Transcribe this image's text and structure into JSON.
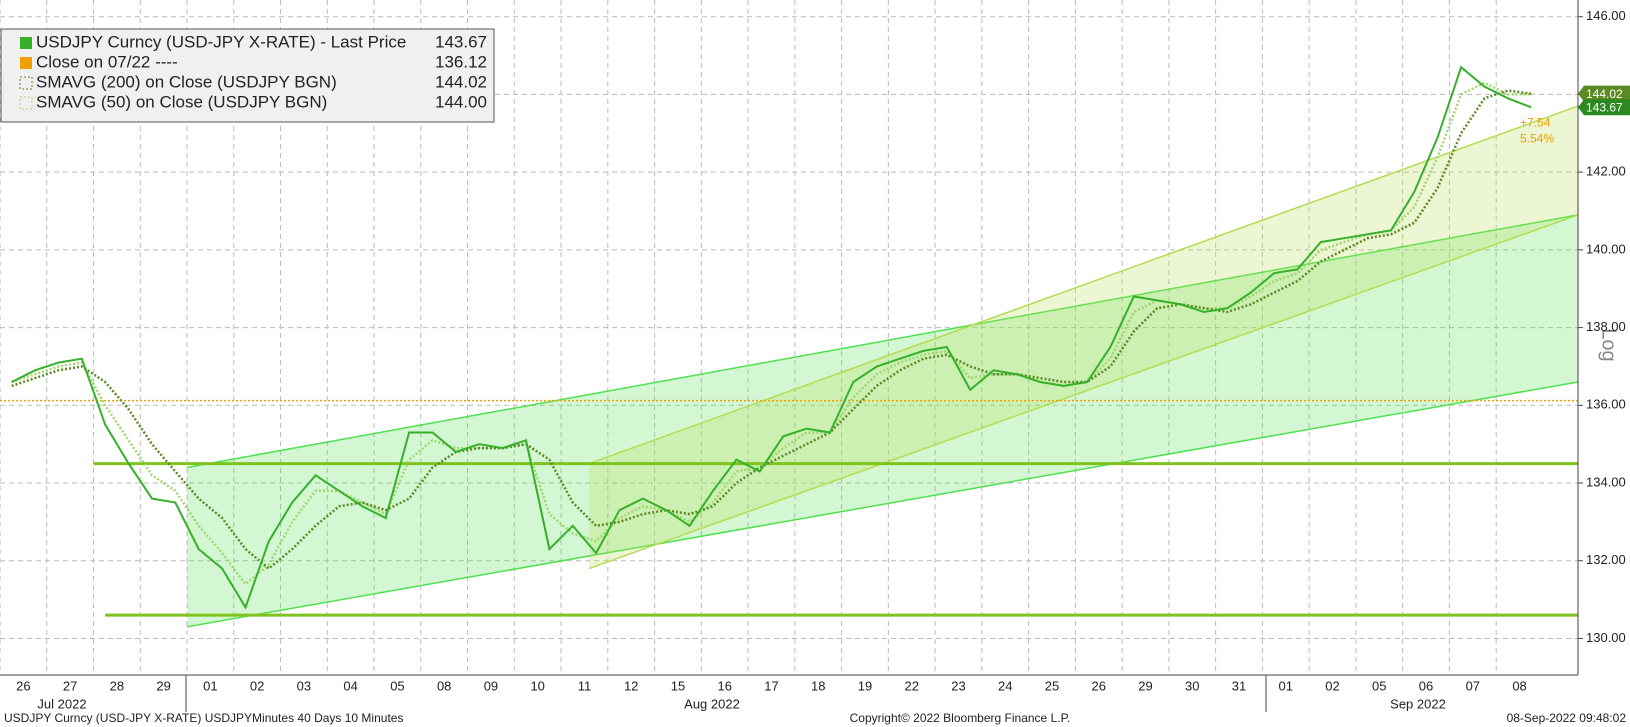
{
  "chart_data": {
    "type": "line",
    "categories": [
      "26",
      null,
      "27",
      null,
      "28",
      null,
      "29",
      null,
      "01",
      null,
      "02",
      null,
      "03",
      null,
      "04",
      null,
      "05",
      null,
      "08",
      null,
      "09",
      null,
      "10",
      null,
      "11",
      null,
      "12",
      null,
      "15",
      null,
      "16",
      null,
      "17",
      null,
      "18",
      null,
      "19",
      null,
      "22",
      null,
      "23",
      null,
      "24",
      null,
      "25",
      null,
      "26",
      null,
      "29",
      null,
      "30",
      null,
      "31",
      null,
      "01",
      null,
      "02",
      null,
      "05",
      null,
      "06",
      null,
      "07",
      null,
      "08",
      null
    ],
    "xlim": [
      0,
      67.5
    ],
    "ylim": [
      129.06,
      146.43
    ],
    "yticks": [
      {
        "value": 130,
        "label": "130.00"
      },
      {
        "value": 132,
        "label": "132.00"
      },
      {
        "value": 134,
        "label": "134.00"
      },
      {
        "value": 136,
        "label": "136.00"
      },
      {
        "value": 138,
        "label": "138.00"
      },
      {
        "value": 140,
        "label": "140.00"
      },
      {
        "value": 142,
        "label": "142.00"
      },
      {
        "value": 144,
        "label": "144.00"
      },
      {
        "value": 146,
        "label": "146.00"
      }
    ],
    "grid": true,
    "series": [
      {
        "name": "USDJPY Curncy (USD-JPY X-RATE) - Last Price",
        "legend_value": "143.67",
        "color": "#35b02a",
        "style": "solid",
        "values": [
          136.6,
          136.9,
          137.1,
          137.2,
          135.5,
          134.5,
          133.6,
          133.5,
          132.3,
          131.8,
          130.8,
          132.5,
          133.5,
          134.2,
          133.8,
          133.4,
          133.1,
          135.3,
          135.3,
          134.8,
          135.0,
          134.9,
          135.1,
          132.3,
          132.9,
          132.2,
          133.3,
          133.6,
          133.3,
          132.9,
          133.8,
          134.6,
          134.3,
          135.2,
          135.4,
          135.3,
          136.6,
          137.0,
          137.2,
          137.4,
          137.5,
          136.4,
          136.9,
          136.8,
          136.6,
          136.5,
          136.6,
          137.5,
          138.8,
          138.7,
          138.6,
          138.4,
          138.5,
          138.9,
          139.4,
          139.5,
          140.2,
          140.3,
          140.4,
          140.5,
          141.5,
          142.9,
          144.7,
          144.2,
          143.9,
          143.67
        ]
      },
      {
        "name": "SMAVG (200)  on Close (USDJPY BGN)",
        "legend_value": "144.02",
        "color": "#5b8a23",
        "style": "dotted",
        "values": [
          136.5,
          136.7,
          136.9,
          137.0,
          136.6,
          135.9,
          135.0,
          134.3,
          133.6,
          133.1,
          132.3,
          131.8,
          132.3,
          132.9,
          133.4,
          133.5,
          133.3,
          133.6,
          134.4,
          134.8,
          134.9,
          134.9,
          135.0,
          134.6,
          133.5,
          132.9,
          133.0,
          133.2,
          133.3,
          133.2,
          133.4,
          134.0,
          134.4,
          134.7,
          135.0,
          135.3,
          135.9,
          136.5,
          136.9,
          137.2,
          137.3,
          137.0,
          136.8,
          136.8,
          136.7,
          136.6,
          136.6,
          137.0,
          137.9,
          138.5,
          138.6,
          138.5,
          138.4,
          138.6,
          138.9,
          139.2,
          139.7,
          140.0,
          140.3,
          140.4,
          140.7,
          141.6,
          143.0,
          143.9,
          144.1,
          144.02
        ]
      },
      {
        "name": "SMAVG (50)  on Close (USDJPY BGN)",
        "legend_value": "144.00",
        "color": "#9fd66e",
        "style": "dotted",
        "values": [
          136.6,
          136.8,
          137.0,
          137.1,
          136.0,
          135.1,
          134.2,
          133.8,
          132.9,
          132.2,
          131.4,
          131.9,
          133.0,
          133.8,
          133.8,
          133.5,
          133.2,
          134.6,
          135.1,
          134.9,
          134.9,
          134.9,
          135.0,
          133.2,
          132.7,
          132.5,
          133.1,
          133.4,
          133.3,
          133.0,
          133.5,
          134.3,
          134.4,
          134.9,
          135.3,
          135.3,
          136.2,
          136.8,
          137.1,
          137.3,
          137.4,
          136.7,
          136.8,
          136.8,
          136.6,
          136.5,
          136.6,
          137.2,
          138.4,
          138.7,
          138.6,
          138.5,
          138.5,
          138.8,
          139.2,
          139.4,
          140.0,
          140.2,
          140.4,
          140.5,
          141.1,
          142.4,
          144.0,
          144.3,
          144.0,
          144.0
        ]
      }
    ],
    "reference_line": {
      "name": "Close on 07/22 ----",
      "value": 136.12,
      "label": "136.12",
      "color": "#f0a000"
    },
    "hlines": [
      {
        "value": 134.5,
        "color": "#7fc41c"
      },
      {
        "value": 130.6,
        "color": "#7fc41c"
      }
    ],
    "channels": [
      {
        "x": [
          8,
          67.5
        ],
        "lower": [
          130.3,
          136.6
        ],
        "upper": [
          134.4,
          140.9
        ],
        "color": "#4fe04f"
      },
      {
        "x": [
          25.2,
          67.5
        ],
        "lower": [
          131.8,
          140.9
        ],
        "upper": [
          134.5,
          143.7
        ],
        "color": "#b4dc50"
      }
    ],
    "change": {
      "label": "+7.54",
      "pct_label": "5.54%"
    },
    "scale_label": "Log",
    "months": [
      "Jul 2022",
      "Aug 2022",
      "Sep 2022"
    ],
    "footer": {
      "left": "USDJPY Curncy (USD-JPY X-RATE) USDJPYMinutes 40 Days 10 Minutes",
      "center": "Copyright© 2022 Bloomberg Finance L.P.",
      "right": "08-Sep-2022 09:48:02"
    }
  }
}
